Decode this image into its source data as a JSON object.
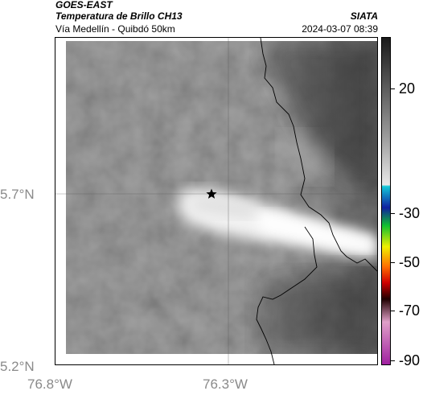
{
  "header": {
    "source": "GOES-EAST",
    "product": "Temperatura de Brillo CH13",
    "region": "Vía Medellín - Quibdó 50km",
    "organization": "SIATA",
    "timestamp": "2024-03-07 08:39"
  },
  "axes": {
    "latitude_ticks": [
      "5.7°N",
      "5.2°N"
    ],
    "longitude_ticks": [
      "76.8°W",
      "76.3°W"
    ]
  },
  "marker": {
    "icon": "star-icon",
    "color": "#000000"
  },
  "colorbar": {
    "ticks": [
      "20",
      "-30",
      "-50",
      "-70",
      "-90"
    ],
    "colors": {
      "top": "#1a1a1a",
      "mid_gray": "#9a9a9a",
      "light": "#e8e8e8",
      "cyan": "#14c8d8",
      "blue": "#1020a0",
      "green": "#10c030",
      "yellow": "#f0f000",
      "orange": "#ff7000",
      "red": "#d00000",
      "dark": "#200000",
      "pink": "#e0a0c8",
      "magenta": "#a020a0"
    }
  }
}
